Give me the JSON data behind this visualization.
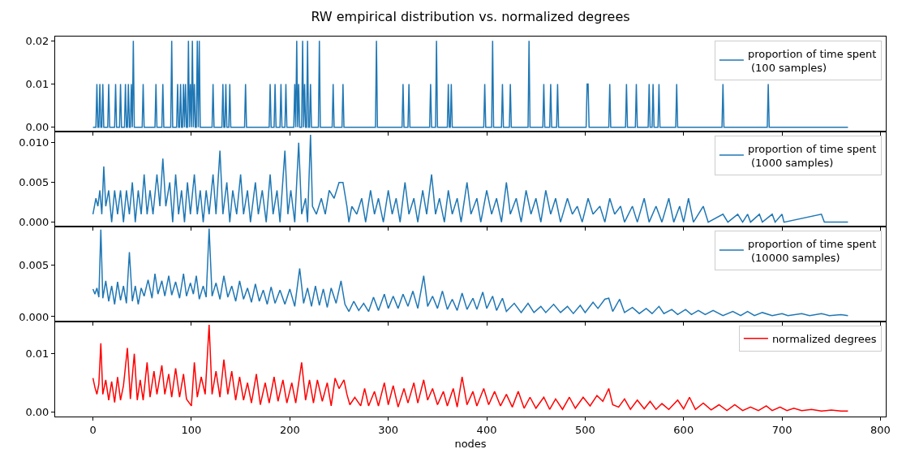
{
  "chart_data": [
    {
      "type": "line",
      "title": "RW empirical distribution vs. normalized degrees",
      "legend": "top right",
      "tick_labels": "y",
      "xlim": [
        -38.4,
        805.4
      ],
      "xticks": [
        0,
        100,
        200,
        300,
        400,
        500,
        600,
        700,
        800
      ],
      "ylim": [
        -0.001,
        0.021
      ],
      "yticks": [
        {
          "value": 0,
          "label": "0.00"
        },
        {
          "value": 0.01,
          "label": "0.01"
        },
        {
          "value": 0.02,
          "label": "0.02"
        }
      ],
      "series": [
        {
          "name": "proportion of time spent\n (100 samples)",
          "color": "#1f77b4",
          "x": [
            0,
            3,
            4,
            5,
            6,
            7,
            8,
            9,
            10,
            11,
            15,
            16,
            17,
            22,
            23,
            24,
            27,
            28,
            29,
            32,
            33,
            34,
            35,
            36,
            37,
            38,
            39,
            40,
            41,
            42,
            50,
            51,
            52,
            63,
            64,
            65,
            70,
            71,
            72,
            79,
            80,
            81,
            85,
            86,
            87,
            88,
            89,
            90,
            91,
            92,
            93,
            94,
            95,
            96,
            97,
            98,
            99,
            100,
            101,
            102,
            103,
            104,
            105,
            106,
            107,
            108,
            109,
            121,
            122,
            123,
            131,
            132,
            133,
            134,
            135,
            136,
            138,
            139,
            140,
            154,
            155,
            156,
            179,
            180,
            181,
            184,
            185,
            186,
            190,
            191,
            192,
            195,
            196,
            197,
            204,
            205,
            206,
            207,
            208,
            209,
            210,
            212,
            213,
            214,
            215,
            216,
            217,
            218,
            219,
            220,
            221,
            222,
            229,
            230,
            231,
            243,
            244,
            245,
            253,
            254,
            255,
            287,
            288,
            289,
            314,
            315,
            316,
            320,
            321,
            322,
            342,
            343,
            344,
            348,
            349,
            350,
            360,
            361,
            362,
            363,
            364,
            365,
            397,
            398,
            399,
            405,
            406,
            407,
            415,
            416,
            417,
            423,
            424,
            425,
            442,
            443,
            444,
            457,
            458,
            459,
            464,
            465,
            466,
            471,
            472,
            473,
            501,
            502,
            503,
            504,
            524,
            525,
            526,
            541,
            542,
            543,
            551,
            552,
            553,
            564,
            565,
            566,
            568,
            569,
            570,
            574,
            575,
            576,
            592,
            593,
            594,
            639,
            640,
            641,
            685,
            686,
            687,
            767
          ],
          "values": [
            0,
            0,
            0.01,
            0,
            0,
            0.01,
            0,
            0,
            0.01,
            0,
            0,
            0.01,
            0,
            0,
            0.01,
            0,
            0,
            0.01,
            0,
            0,
            0.01,
            0,
            0,
            0.01,
            0,
            0,
            0.01,
            0,
            0.02,
            0,
            0,
            0.01,
            0,
            0,
            0.01,
            0,
            0,
            0.01,
            0,
            0,
            0.02,
            0,
            0,
            0.01,
            0,
            0,
            0.01,
            0,
            0,
            0.01,
            0,
            0.01,
            0,
            0,
            0.02,
            0,
            0.01,
            0,
            0.02,
            0,
            0.01,
            0,
            0,
            0.02,
            0,
            0.02,
            0,
            0,
            0.01,
            0,
            0,
            0.01,
            0,
            0,
            0.01,
            0,
            0,
            0.01,
            0,
            0,
            0.01,
            0,
            0,
            0.01,
            0,
            0,
            0.01,
            0,
            0,
            0.01,
            0,
            0,
            0.01,
            0,
            0,
            0.01,
            0,
            0.02,
            0,
            0.01,
            0,
            0,
            0.02,
            0,
            0.01,
            0,
            0,
            0.02,
            0,
            0,
            0.01,
            0,
            0,
            0.02,
            0,
            0,
            0.01,
            0,
            0,
            0.01,
            0,
            0,
            0.02,
            0,
            0,
            0.01,
            0,
            0,
            0.01,
            0,
            0,
            0.01,
            0,
            0,
            0.02,
            0,
            0,
            0.01,
            0,
            0,
            0.01,
            0,
            0,
            0.01,
            0,
            0,
            0.02,
            0,
            0,
            0.01,
            0,
            0,
            0.01,
            0,
            0,
            0.02,
            0,
            0,
            0.01,
            0,
            0,
            0.01,
            0,
            0,
            0.01,
            0,
            0,
            0.01,
            0.01,
            0,
            0,
            0.01,
            0,
            0,
            0.01,
            0,
            0,
            0.01,
            0,
            0,
            0.01,
            0,
            0,
            0.01,
            0,
            0,
            0.01,
            0,
            0,
            0.01,
            0,
            0,
            0.01,
            0,
            0,
            0.01,
            0,
            0
          ]
        }
      ]
    },
    {
      "type": "line",
      "legend": "top right",
      "tick_labels": "y",
      "xlim": [
        -38.4,
        805.4
      ],
      "xticks": [
        0,
        100,
        200,
        300,
        400,
        500,
        600,
        700,
        800
      ],
      "ylim": [
        -0.00055,
        0.0114
      ],
      "yticks": [
        {
          "value": 0,
          "label": "0.000"
        },
        {
          "value": 0.005,
          "label": "0.005"
        },
        {
          "value": 0.01,
          "label": "0.010"
        }
      ],
      "series": [
        {
          "name": "proportion of time spent\n (1000 samples)",
          "color": "#1f77b4",
          "x": [
            0,
            3,
            5,
            7,
            9,
            11,
            13,
            16,
            19,
            22,
            25,
            28,
            31,
            34,
            37,
            40,
            43,
            46,
            49,
            52,
            55,
            58,
            61,
            65,
            68,
            71,
            74,
            78,
            81,
            84,
            87,
            90,
            93,
            96,
            99,
            103,
            106,
            109,
            112,
            115,
            118,
            122,
            125,
            129,
            132,
            136,
            139,
            142,
            146,
            150,
            153,
            157,
            160,
            165,
            168,
            172,
            176,
            180,
            183,
            187,
            190,
            195,
            198,
            201,
            205,
            209,
            212,
            216,
            218,
            221,
            223,
            227,
            232,
            236,
            240,
            245,
            250,
            254,
            258,
            260,
            263,
            268,
            273,
            277,
            282,
            286,
            290,
            295,
            300,
            304,
            308,
            312,
            317,
            321,
            326,
            330,
            335,
            339,
            344,
            348,
            352,
            357,
            361,
            365,
            370,
            374,
            380,
            384,
            390,
            394,
            400,
            405,
            410,
            415,
            420,
            424,
            430,
            435,
            440,
            445,
            450,
            455,
            460,
            465,
            470,
            475,
            482,
            487,
            492,
            497,
            503,
            508,
            515,
            520,
            525,
            530,
            536,
            540,
            548,
            553,
            560,
            565,
            572,
            578,
            585,
            590,
            596,
            600,
            605,
            610,
            620,
            625,
            640,
            645,
            655,
            660,
            665,
            668,
            677,
            680,
            690,
            693,
            700,
            702,
            740,
            743,
            767
          ],
          "values": [
            0.001,
            0.003,
            0.002,
            0.004,
            0.001,
            0.007,
            0.002,
            0.004,
            0,
            0.004,
            0.001,
            0.004,
            0,
            0.004,
            0.001,
            0.005,
            0,
            0.004,
            0.001,
            0.006,
            0.001,
            0.004,
            0.001,
            0.006,
            0.002,
            0.008,
            0.002,
            0.005,
            0,
            0.006,
            0.001,
            0.004,
            0,
            0.005,
            0.001,
            0.006,
            0.001,
            0.004,
            0,
            0.004,
            0.001,
            0.006,
            0.001,
            0.009,
            0.001,
            0.005,
            0,
            0.004,
            0.001,
            0.006,
            0.001,
            0.004,
            0,
            0.005,
            0.001,
            0.004,
            0,
            0.006,
            0.001,
            0.004,
            0,
            0.009,
            0.001,
            0.004,
            0,
            0.01,
            0.001,
            0.003,
            0,
            0.011,
            0.002,
            0.001,
            0.003,
            0.001,
            0.004,
            0.003,
            0.005,
            0.005,
            0.002,
            0,
            0.002,
            0.001,
            0.003,
            0,
            0.004,
            0.001,
            0.003,
            0,
            0.004,
            0.001,
            0.003,
            0,
            0.005,
            0.001,
            0.003,
            0,
            0.004,
            0.001,
            0.006,
            0.001,
            0.003,
            0,
            0.004,
            0.001,
            0.003,
            0,
            0.005,
            0.001,
            0.003,
            0,
            0.004,
            0.001,
            0.003,
            0,
            0.005,
            0.001,
            0.003,
            0,
            0.004,
            0.001,
            0.003,
            0,
            0.004,
            0.001,
            0.003,
            0,
            0.003,
            0.001,
            0.002,
            0,
            0.003,
            0.001,
            0.002,
            0,
            0.003,
            0.001,
            0.002,
            0,
            0.002,
            0,
            0.003,
            0,
            0.002,
            0,
            0.003,
            0,
            0.002,
            0,
            0.003,
            0,
            0.002,
            0,
            0.001,
            0,
            0.001,
            0,
            0.001,
            0,
            0.001,
            0,
            0.001,
            0,
            0.001,
            0,
            0.001,
            0,
            0
          ]
        }
      ]
    },
    {
      "type": "line",
      "legend": "top right",
      "tick_labels": "y",
      "xlim": [
        -38.4,
        805.4
      ],
      "xticks": [
        0,
        100,
        200,
        300,
        400,
        500,
        600,
        700,
        800
      ],
      "ylim": [
        -0.00048,
        0.0088
      ],
      "yticks": [
        {
          "value": 0,
          "label": "0.000"
        },
        {
          "value": 0.005,
          "label": "0.005"
        }
      ],
      "series": [
        {
          "name": "proportion of time spent\n (10000 samples)",
          "color": "#1f77b4",
          "x": [
            0,
            2,
            4,
            6,
            8,
            10,
            13,
            16,
            19,
            22,
            25,
            28,
            31,
            34,
            37,
            40,
            43,
            46,
            49,
            52,
            56,
            60,
            63,
            66,
            70,
            73,
            77,
            80,
            84,
            88,
            92,
            95,
            99,
            102,
            105,
            108,
            112,
            115,
            118,
            121,
            125,
            129,
            133,
            137,
            141,
            145,
            149,
            153,
            157,
            161,
            165,
            169,
            173,
            177,
            181,
            185,
            190,
            195,
            200,
            205,
            210,
            214,
            218,
            222,
            226,
            230,
            234,
            238,
            242,
            247,
            252,
            256,
            260,
            265,
            270,
            275,
            280,
            285,
            290,
            296,
            300,
            305,
            310,
            315,
            320,
            325,
            330,
            336,
            340,
            345,
            350,
            355,
            360,
            365,
            370,
            375,
            380,
            386,
            390,
            396,
            400,
            406,
            410,
            416,
            420,
            428,
            435,
            442,
            448,
            455,
            460,
            468,
            475,
            482,
            488,
            495,
            500,
            508,
            513,
            520,
            524,
            528,
            535,
            540,
            548,
            555,
            562,
            568,
            575,
            580,
            588,
            594,
            602,
            608,
            615,
            622,
            630,
            640,
            650,
            658,
            665,
            672,
            680,
            690,
            700,
            706,
            720,
            728,
            740,
            748,
            760,
            767
          ],
          "values": [
            0.0027,
            0.0022,
            0.0028,
            0.0019,
            0.0085,
            0.0018,
            0.0035,
            0.0015,
            0.003,
            0.0012,
            0.0034,
            0.0016,
            0.003,
            0.0013,
            0.0063,
            0.0015,
            0.003,
            0.0012,
            0.0028,
            0.002,
            0.0036,
            0.0018,
            0.0042,
            0.0022,
            0.0035,
            0.002,
            0.004,
            0.0021,
            0.0034,
            0.0018,
            0.0042,
            0.002,
            0.0033,
            0.0022,
            0.004,
            0.0017,
            0.003,
            0.0019,
            0.0086,
            0.002,
            0.0033,
            0.0017,
            0.004,
            0.0019,
            0.003,
            0.0015,
            0.0035,
            0.0017,
            0.0028,
            0.0014,
            0.0032,
            0.0015,
            0.0026,
            0.0012,
            0.0029,
            0.0013,
            0.0026,
            0.0012,
            0.0027,
            0.001,
            0.0047,
            0.0013,
            0.0028,
            0.001,
            0.003,
            0.0011,
            0.0027,
            0.0009,
            0.0028,
            0.0013,
            0.0035,
            0.0012,
            0.0005,
            0.0015,
            0.0006,
            0.0013,
            0.0005,
            0.0019,
            0.0006,
            0.0022,
            0.0008,
            0.002,
            0.0008,
            0.0022,
            0.001,
            0.0025,
            0.0008,
            0.004,
            0.001,
            0.002,
            0.0008,
            0.0025,
            0.0007,
            0.0017,
            0.0006,
            0.0023,
            0.0007,
            0.0018,
            0.0007,
            0.0024,
            0.0008,
            0.002,
            0.0006,
            0.0018,
            0.0005,
            0.0013,
            0.0004,
            0.0013,
            0.0004,
            0.001,
            0.0004,
            0.0012,
            0.0004,
            0.001,
            0.0003,
            0.0011,
            0.0004,
            0.0014,
            0.0008,
            0.0017,
            0.0018,
            0.0005,
            0.0017,
            0.0004,
            0.0009,
            0.0003,
            0.0008,
            0.0003,
            0.001,
            0.0003,
            0.0007,
            0.0002,
            0.0007,
            0.0002,
            0.0006,
            0.0002,
            0.0006,
            0.0001,
            0.0005,
            0.0001,
            0.0005,
            0.0001,
            0.0004,
            0.0001,
            0.0003,
            0.0001,
            0.0003,
            0.0001,
            0.0003,
            0.0001,
            0.0002,
            0.0001
          ]
        }
      ]
    },
    {
      "type": "line",
      "legend": "top right",
      "xlabel": "nodes",
      "xlim": [
        -38.4,
        805.4
      ],
      "xticks": [
        0,
        100,
        200,
        300,
        400,
        500,
        600,
        700,
        800
      ],
      "ylim": [
        -0.00083,
        0.01556
      ],
      "yticks": [
        {
          "value": 0,
          "label": "0.00"
        },
        {
          "value": 0.01,
          "label": "0.01"
        }
      ],
      "series": [
        {
          "name": "normalized degrees",
          "color": "#ff0000",
          "x": [
            0,
            2,
            4,
            6,
            8,
            10,
            13,
            16,
            19,
            22,
            25,
            28,
            31,
            35,
            38,
            42,
            45,
            48,
            51,
            55,
            58,
            62,
            65,
            70,
            73,
            77,
            80,
            84,
            88,
            92,
            95,
            100,
            103,
            106,
            110,
            114,
            118,
            121,
            125,
            129,
            133,
            137,
            141,
            145,
            149,
            153,
            157,
            161,
            166,
            170,
            175,
            179,
            184,
            188,
            193,
            197,
            202,
            206,
            212,
            216,
            220,
            224,
            228,
            233,
            238,
            242,
            246,
            250,
            255,
            258,
            261,
            266,
            272,
            276,
            280,
            286,
            290,
            296,
            300,
            305,
            310,
            316,
            320,
            326,
            330,
            336,
            340,
            345,
            350,
            356,
            360,
            366,
            370,
            375,
            380,
            386,
            390,
            397,
            402,
            408,
            414,
            420,
            426,
            432,
            438,
            444,
            450,
            458,
            464,
            470,
            477,
            484,
            490,
            498,
            505,
            512,
            518,
            524,
            528,
            534,
            540,
            546,
            553,
            560,
            566,
            572,
            578,
            585,
            594,
            600,
            606,
            612,
            620,
            628,
            636,
            644,
            652,
            660,
            668,
            676,
            684,
            690,
            698,
            705,
            712,
            720,
            730,
            740,
            750,
            760,
            767
          ],
          "values": [
            0.0058,
            0.0042,
            0.003,
            0.0048,
            0.0118,
            0.003,
            0.0055,
            0.002,
            0.0052,
            0.0016,
            0.006,
            0.002,
            0.0045,
            0.011,
            0.0022,
            0.01,
            0.002,
            0.0055,
            0.002,
            0.0085,
            0.0025,
            0.007,
            0.003,
            0.008,
            0.003,
            0.0065,
            0.0025,
            0.0075,
            0.0025,
            0.0065,
            0.0022,
            0.001,
            0.0085,
            0.0025,
            0.006,
            0.003,
            0.015,
            0.003,
            0.007,
            0.0025,
            0.009,
            0.003,
            0.007,
            0.002,
            0.006,
            0.002,
            0.005,
            0.0015,
            0.0065,
            0.0012,
            0.005,
            0.0015,
            0.006,
            0.0018,
            0.0055,
            0.0015,
            0.005,
            0.0015,
            0.0085,
            0.002,
            0.0055,
            0.0015,
            0.0055,
            0.0018,
            0.005,
            0.001,
            0.0058,
            0.004,
            0.0055,
            0.003,
            0.0012,
            0.0025,
            0.001,
            0.004,
            0.001,
            0.0035,
            0.001,
            0.005,
            0.0012,
            0.0045,
            0.0008,
            0.004,
            0.0015,
            0.005,
            0.0015,
            0.0055,
            0.002,
            0.004,
            0.0012,
            0.0035,
            0.001,
            0.004,
            0.0008,
            0.006,
            0.0012,
            0.0035,
            0.001,
            0.004,
            0.0012,
            0.0035,
            0.001,
            0.003,
            0.0008,
            0.0035,
            0.0006,
            0.0025,
            0.0006,
            0.0025,
            0.0004,
            0.0022,
            0.0004,
            0.0025,
            0.0006,
            0.0025,
            0.001,
            0.0028,
            0.0018,
            0.004,
            0.0012,
            0.0008,
            0.0022,
            0.0004,
            0.002,
            0.0005,
            0.0018,
            0.0004,
            0.0014,
            0.0004,
            0.002,
            0.0005,
            0.0025,
            0.0004,
            0.0015,
            0.0003,
            0.0012,
            0.0002,
            0.0012,
            0.0002,
            0.0008,
            0.0002,
            0.001,
            0.0002,
            0.0008,
            0.0002,
            0.0006,
            0.0002,
            0.0004,
            0.0001,
            0.0003,
            0.0001,
            0.0001
          ]
        }
      ]
    }
  ]
}
